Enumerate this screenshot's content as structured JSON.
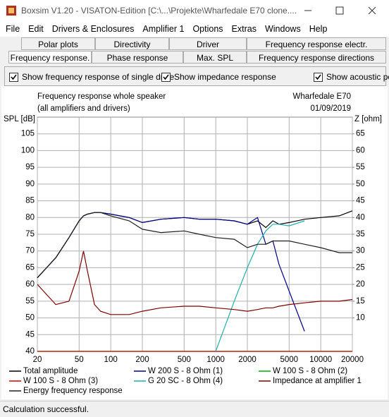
{
  "window": {
    "title": "Boxsim V1.20 - VISATON-Edition [C:\\...\\Projekte\\Wharfedale E70 clone...."
  },
  "menu": [
    "File",
    "Edit",
    "Drivers & Enclosures",
    "Amplifier 1",
    "Options",
    "Extras",
    "Windows",
    "Help"
  ],
  "tabs": [
    [
      "Polar plots",
      "Directivity",
      "Driver",
      "Frequency response electr."
    ],
    [
      "Frequency response.",
      "Phase response",
      "Max. SPL",
      "Frequency response directions"
    ]
  ],
  "options": [
    "Show frequency response of single drive",
    "Show impedance response",
    "Show acoustic pc"
  ],
  "chart_data": {
    "type": "line",
    "title": "Frequency response whole speaker",
    "subtitle": "(all amplifiers and drivers)",
    "annotations": [
      "Wharfedale E70",
      "01/09/2019"
    ],
    "ylabel": "SPL [dB]",
    "y2label": "Z [ohm]",
    "xscale": "log",
    "grid": true,
    "x": [
      20,
      30,
      40,
      50,
      55,
      60,
      70,
      80,
      100,
      150,
      200,
      300,
      500,
      700,
      1000,
      1500,
      2000,
      2500,
      3000,
      3500,
      4000,
      5000,
      7000,
      10000,
      15000,
      20000
    ],
    "xlim": [
      20,
      20000
    ],
    "xticks": [
      20,
      50,
      100,
      200,
      500,
      1000,
      2000,
      5000,
      10000,
      20000
    ],
    "ylim": [
      40,
      110
    ],
    "yticks": [
      40,
      45,
      50,
      55,
      60,
      65,
      70,
      75,
      80,
      85,
      90,
      95,
      100,
      105
    ],
    "y2lim": [
      0,
      70
    ],
    "y2ticks": [
      10,
      15,
      20,
      25,
      30,
      35,
      40,
      45,
      50,
      55,
      60,
      65
    ],
    "series": [
      {
        "name": "Total amplitude",
        "color": "#000000",
        "values": [
          62,
          68,
          74,
          79,
          80.5,
          81,
          81.5,
          81.5,
          81,
          80,
          78.5,
          79.5,
          80,
          79.5,
          79.5,
          79,
          78,
          79,
          77,
          79,
          78,
          78.5,
          79.5,
          80,
          80.5,
          82
        ]
      },
      {
        "name": "W 200 S - 8 Ohm (1)",
        "color": "#00008b",
        "values": [
          62,
          68,
          74,
          79,
          80.5,
          81,
          81.5,
          81.5,
          81,
          80,
          78.5,
          79.5,
          80,
          79.5,
          79.5,
          79,
          78,
          80,
          72,
          73,
          66,
          58,
          46,
          null,
          null,
          null
        ]
      },
      {
        "name": "W 100 S - 8 Ohm (2)",
        "color": "#00b000",
        "values": [
          40,
          40,
          40,
          40,
          40,
          40,
          40,
          40,
          40,
          40,
          40,
          40,
          40,
          40,
          40,
          40,
          40,
          40,
          40,
          40,
          40,
          40,
          40,
          40,
          40,
          40
        ]
      },
      {
        "name": "W 100 S - 8 Ohm (3)",
        "color": "#d00000",
        "values": [
          40,
          40,
          40,
          40,
          40,
          40,
          40,
          40,
          40,
          40,
          40,
          40,
          40,
          40,
          40,
          40,
          40,
          40,
          40,
          40,
          40,
          40,
          40,
          40,
          40,
          40
        ]
      },
      {
        "name": "G 20 SC - 8 Ohm (4)",
        "color": "#20b0b0",
        "values": [
          null,
          null,
          null,
          null,
          null,
          null,
          null,
          null,
          null,
          null,
          null,
          null,
          null,
          null,
          40,
          55,
          65,
          72,
          76,
          78,
          78,
          77.5,
          79,
          null,
          null,
          null
        ]
      },
      {
        "name": "Impedance at amplifier 1",
        "color": "#800000",
        "axis": "y2",
        "values": [
          20,
          14,
          15,
          24,
          30,
          24,
          14,
          12,
          11,
          11,
          12,
          13,
          13.5,
          13.5,
          13,
          12.5,
          12,
          12.5,
          13,
          13,
          13.5,
          14,
          14.5,
          15,
          15,
          15.5
        ]
      },
      {
        "name": "Energy frequency response",
        "color": "#202020",
        "values": [
          62,
          68,
          74,
          79,
          80.5,
          81,
          81.5,
          81.5,
          80.5,
          79,
          76.5,
          75.5,
          76,
          75,
          74,
          73.5,
          71,
          72,
          72,
          73,
          73,
          73,
          72,
          71,
          69.5,
          69.5
        ]
      }
    ]
  },
  "status": "Calculation successful."
}
